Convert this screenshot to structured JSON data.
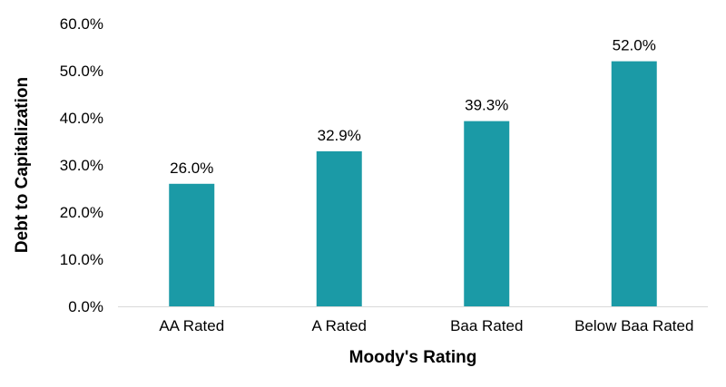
{
  "chart_data": {
    "type": "bar",
    "title": "",
    "xlabel": "Moody's Rating",
    "ylabel": "Debt to Capitalization",
    "categories": [
      "AA Rated",
      "A Rated",
      "Baa Rated",
      "Below Baa Rated"
    ],
    "values": [
      26.0,
      32.9,
      39.3,
      52.0
    ],
    "data_labels": [
      "26.0%",
      "32.9%",
      "39.3%",
      "52.0%"
    ],
    "ylim": [
      0,
      60
    ],
    "yticks": [
      0,
      10,
      20,
      30,
      40,
      50,
      60
    ],
    "ytick_labels": [
      "0.0%",
      "10.0%",
      "20.0%",
      "30.0%",
      "40.0%",
      "50.0%",
      "60.0%"
    ],
    "grid": false,
    "legend": "none",
    "colors": {
      "bar": "#1b9aa6",
      "axis": "#d9d9d9"
    }
  }
}
